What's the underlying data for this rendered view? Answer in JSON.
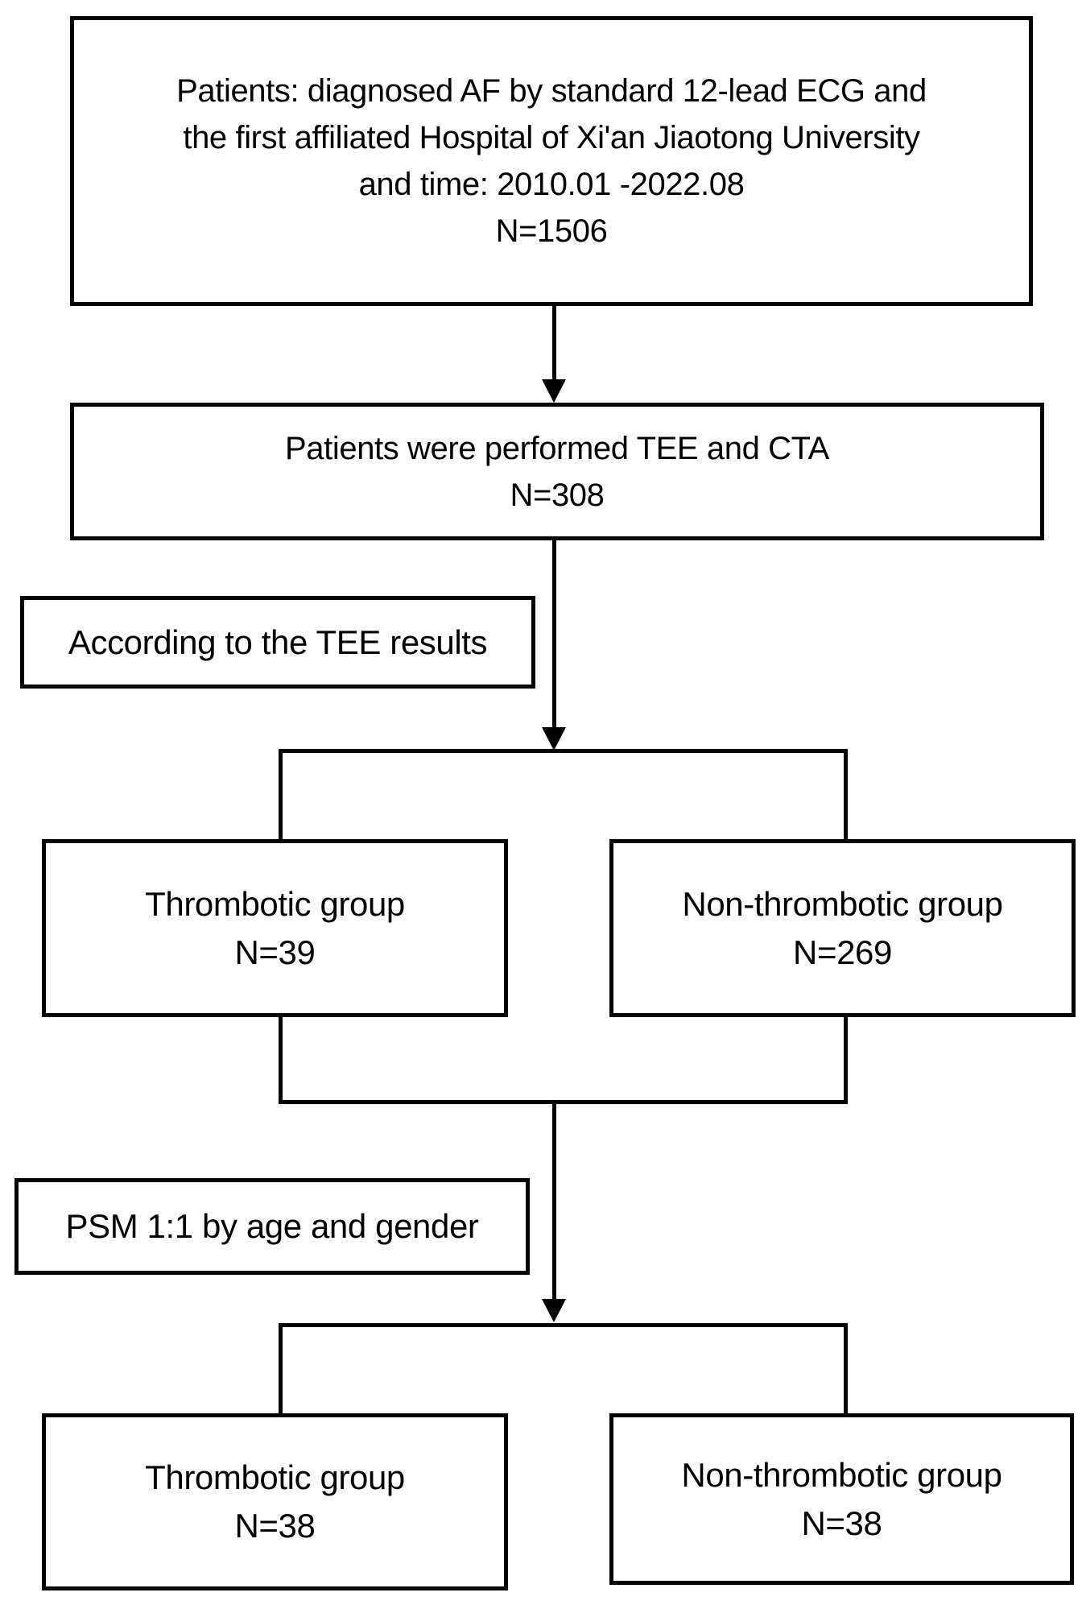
{
  "colors": {
    "background": "#ffffff",
    "box_fill": "#ffffff",
    "box_border": "#000000",
    "line": "#000000",
    "text": "#000000"
  },
  "flowchart": {
    "intake_box": {
      "line1": "Patients: diagnosed AF by standard 12-lead ECG and",
      "line2": "the first affiliated Hospital of Xi'an Jiaotong University",
      "line3": "and time: 2010.01 -2022.08",
      "line4": "N=1506"
    },
    "tee_cta_box": {
      "line1": "Patients were performed TEE and CTA",
      "line2": "N=308"
    },
    "tee_results_box": {
      "label": "According to the TEE results"
    },
    "thrombotic_group_pre_psm": {
      "name": "Thrombotic group",
      "count": "N=39"
    },
    "non_thrombotic_group_pre_psm": {
      "name": "Non-thrombotic group",
      "count": "N=269"
    },
    "psm_box": {
      "label": "PSM 1:1 by age and gender"
    },
    "thrombotic_group_post_psm": {
      "name": "Thrombotic group",
      "count": "N=38"
    },
    "non_thrombotic_group_post_psm": {
      "name": "Non-thrombotic group",
      "count": "N=38"
    }
  }
}
